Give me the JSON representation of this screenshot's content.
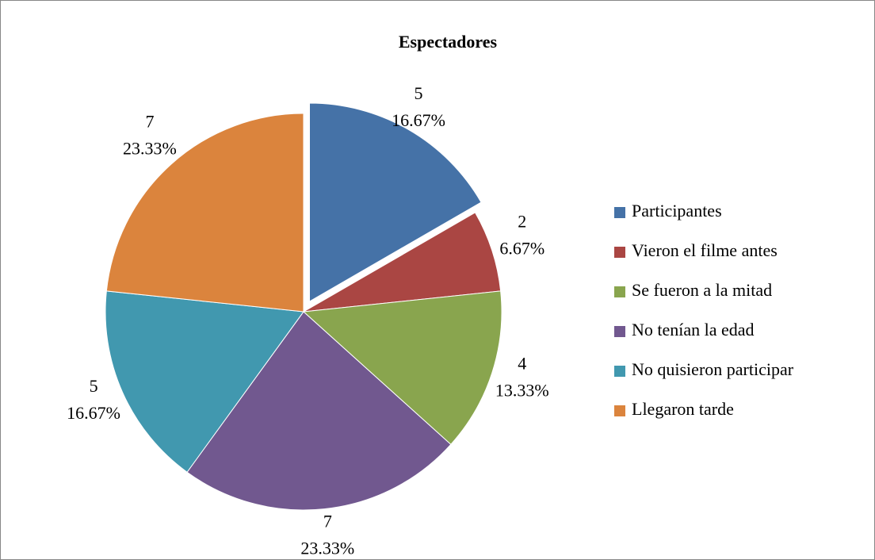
{
  "chart_data": {
    "type": "pie",
    "title": "Espectadores",
    "categories": [
      "Participantes",
      "Vieron el filme antes",
      "Se fueron a la mitad",
      "No tenían la edad",
      "No quisieron participar",
      "Llegaron tarde"
    ],
    "values": [
      5,
      2,
      4,
      7,
      5,
      7
    ],
    "percent_labels": [
      "16.67%",
      "6.67%",
      "13.33%",
      "23.33%",
      "16.67%",
      "23.33%"
    ],
    "colors": [
      "#4572a7",
      "#aa4643",
      "#89a54e",
      "#71588f",
      "#4198af",
      "#db843d"
    ],
    "exploded": [
      0
    ],
    "legend": "right"
  }
}
